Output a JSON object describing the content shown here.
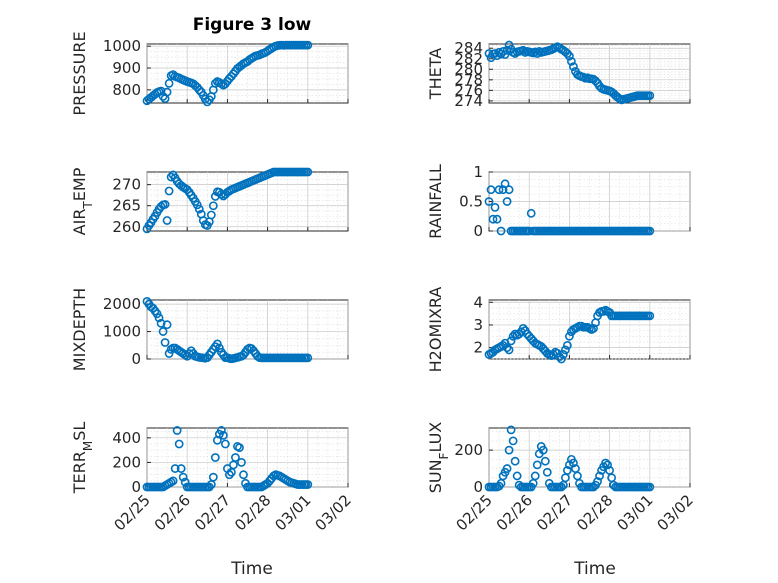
{
  "title": "Figure 3 low",
  "colors": {
    "marker": "#0072BD",
    "axis": "#262626"
  },
  "xticks": [
    "02/25",
    "02/26",
    "02/27",
    "02/28",
    "03/01",
    "03/02"
  ],
  "xlabel": "Time",
  "chart_data": [
    {
      "type": "scatter",
      "ylabel": "PRESSURE",
      "yticks": [
        "800",
        "900",
        "1000"
      ],
      "ylim": [
        740,
        1010
      ],
      "x": [
        0,
        0.05,
        0.1,
        0.15,
        0.2,
        0.25,
        0.3,
        0.35,
        0.4,
        0.45,
        0.5,
        0.55,
        0.6,
        0.65,
        0.7,
        0.75,
        0.8,
        0.85,
        0.9,
        0.95,
        1,
        1.05,
        1.1,
        1.15,
        1.2,
        1.25,
        1.3,
        1.35,
        1.4,
        1.45,
        1.5,
        1.55,
        1.6,
        1.65,
        1.7,
        1.75,
        1.8,
        1.85,
        1.9,
        1.95,
        2,
        2.05,
        2.1,
        2.15,
        2.2,
        2.25,
        2.3,
        2.35,
        2.4,
        2.45,
        2.5,
        2.55,
        2.6,
        2.65,
        2.7,
        2.75,
        2.8,
        2.85,
        2.9,
        2.95,
        3,
        3.05,
        3.1,
        3.15,
        3.2,
        3.25,
        3.3,
        3.35,
        3.4,
        3.45,
        3.5,
        3.55,
        3.6,
        3.65,
        3.7,
        3.75,
        3.8,
        3.85,
        3.9,
        3.95,
        4
      ],
      "y": [
        750,
        758,
        765,
        773,
        780,
        788,
        792,
        795,
        770,
        760,
        790,
        830,
        865,
        870,
        862,
        858,
        855,
        850,
        846,
        842,
        838,
        835,
        832,
        828,
        820,
        812,
        800,
        790,
        775,
        758,
        745,
        755,
        770,
        800,
        830,
        838,
        834,
        828,
        822,
        828,
        840,
        852,
        862,
        874,
        886,
        898,
        905,
        912,
        920,
        925,
        930,
        938,
        944,
        950,
        955,
        958,
        960,
        965,
        968,
        972,
        978,
        985,
        990,
        996,
        1000,
        1003,
        1004,
        1005,
        1004,
        1005,
        1005,
        1005,
        1005,
        1005,
        1005,
        1005,
        1005,
        1005,
        1005,
        1005,
        1005
      ]
    },
    {
      "type": "scatter",
      "ylabel": "THETA",
      "yticks": [
        "274",
        "276",
        "278",
        "280",
        "282",
        "284"
      ],
      "ylim": [
        273.6,
        284.8
      ],
      "x": [
        0,
        0.05,
        0.1,
        0.15,
        0.2,
        0.25,
        0.3,
        0.35,
        0.4,
        0.45,
        0.5,
        0.55,
        0.6,
        0.65,
        0.7,
        0.75,
        0.8,
        0.85,
        0.9,
        0.95,
        1,
        1.05,
        1.1,
        1.15,
        1.2,
        1.25,
        1.3,
        1.35,
        1.4,
        1.45,
        1.5,
        1.55,
        1.6,
        1.65,
        1.7,
        1.75,
        1.8,
        1.85,
        1.9,
        1.95,
        2,
        2.05,
        2.1,
        2.15,
        2.2,
        2.25,
        2.3,
        2.35,
        2.4,
        2.45,
        2.5,
        2.55,
        2.6,
        2.65,
        2.7,
        2.75,
        2.8,
        2.85,
        2.9,
        2.95,
        3,
        3.05,
        3.1,
        3.15,
        3.2,
        3.25,
        3.3,
        3.35,
        3.4,
        3.45,
        3.5,
        3.55,
        3.6,
        3.65,
        3.7,
        3.75,
        3.8,
        3.85,
        3.9,
        3.95,
        4
      ],
      "y": [
        283,
        282.2,
        282.9,
        283,
        282.6,
        283.2,
        282.9,
        283.4,
        282.8,
        283.6,
        284.6,
        283.8,
        283.2,
        283,
        283.3,
        283.4,
        283.5,
        283.6,
        283.2,
        283.4,
        283.3,
        283.2,
        283.1,
        283.3,
        283,
        283.4,
        283.2,
        283.3,
        283.4,
        283.5,
        283.6,
        283.7,
        283.9,
        284.1,
        284.3,
        284.1,
        283.8,
        283.6,
        283.3,
        283,
        282.5,
        281.5,
        280.5,
        279.6,
        279,
        278.8,
        278.6,
        278.5,
        278.3,
        278.4,
        278.2,
        278.2,
        278.1,
        277.8,
        277.4,
        276.8,
        276.4,
        276.2,
        276.1,
        276,
        275.9,
        275.7,
        275.4,
        275,
        274.7,
        274.4,
        274.2,
        274.3,
        274.4,
        274.5,
        274.6,
        274.7,
        274.8,
        274.9,
        275,
        275,
        275,
        275,
        275,
        275,
        275
      ]
    },
    {
      "type": "scatter",
      "ylabel": "AIR_TEMP",
      "yticks": [
        "260",
        "265",
        "270"
      ],
      "ylim": [
        259,
        273
      ],
      "x": [
        0,
        0.05,
        0.1,
        0.15,
        0.2,
        0.25,
        0.3,
        0.35,
        0.4,
        0.45,
        0.5,
        0.55,
        0.6,
        0.65,
        0.7,
        0.75,
        0.8,
        0.85,
        0.9,
        0.95,
        1,
        1.05,
        1.1,
        1.15,
        1.2,
        1.25,
        1.3,
        1.35,
        1.4,
        1.45,
        1.5,
        1.55,
        1.6,
        1.65,
        1.7,
        1.75,
        1.8,
        1.85,
        1.9,
        1.95,
        2,
        2.05,
        2.1,
        2.15,
        2.2,
        2.25,
        2.3,
        2.35,
        2.4,
        2.45,
        2.5,
        2.55,
        2.6,
        2.65,
        2.7,
        2.75,
        2.8,
        2.85,
        2.9,
        2.95,
        3,
        3.05,
        3.1,
        3.15,
        3.2,
        3.25,
        3.3,
        3.35,
        3.4,
        3.45,
        3.5,
        3.55,
        3.6,
        3.65,
        3.7,
        3.75,
        3.8,
        3.85,
        3.9,
        3.95,
        4
      ],
      "y": [
        259.5,
        260.3,
        261,
        261.8,
        262.5,
        263.4,
        264.2,
        264.8,
        265.2,
        265.3,
        261.5,
        268.5,
        271.8,
        272.3,
        271.6,
        270.8,
        270.2,
        269.8,
        269.4,
        269.1,
        268.8,
        268.2,
        267.5,
        266.8,
        266,
        265.2,
        264.2,
        263,
        261.5,
        260.5,
        260.3,
        261.2,
        262.8,
        265,
        267.2,
        268.3,
        268.2,
        267.7,
        267.3,
        267.7,
        268.2,
        268.5,
        268.8,
        269,
        269.2,
        269.4,
        269.6,
        269.8,
        270,
        270.2,
        270.4,
        270.6,
        270.8,
        271,
        271.2,
        271.4,
        271.6,
        271.8,
        272,
        272.2,
        272.4,
        272.6,
        272.8,
        273,
        273.2,
        273.4,
        273.6,
        273.8,
        274,
        274.2,
        274.4,
        274.6,
        274.8,
        275,
        275,
        275,
        275,
        275,
        275,
        275,
        275
      ]
    },
    {
      "type": "scatter",
      "ylabel": "RAINFALL",
      "yticks": [
        "0",
        "0.5",
        "1"
      ],
      "ylim": [
        0,
        1
      ],
      "x": [
        0,
        0.05,
        0.1,
        0.15,
        0.2,
        0.25,
        0.3,
        0.35,
        0.4,
        0.45,
        0.5,
        0.55,
        0.6,
        0.65,
        0.7,
        0.75,
        0.8,
        0.85,
        0.9,
        0.95,
        1,
        1.05,
        1.1,
        1.15,
        1.2,
        1.25,
        1.3,
        1.35,
        1.4,
        1.45,
        1.5,
        1.55,
        1.6,
        1.65,
        1.7,
        1.75,
        1.8,
        1.85,
        1.9,
        1.95,
        2,
        2.05,
        2.1,
        2.15,
        2.2,
        2.25,
        2.3,
        2.35,
        2.4,
        2.45,
        2.5,
        2.55,
        2.6,
        2.65,
        2.7,
        2.75,
        2.8,
        2.85,
        2.9,
        2.95,
        3,
        3.05,
        3.1,
        3.15,
        3.2,
        3.25,
        3.3,
        3.35,
        3.4,
        3.45,
        3.5,
        3.55,
        3.6,
        3.65,
        3.7,
        3.75,
        3.8,
        3.85,
        3.9,
        3.95,
        4
      ],
      "y": [
        0.5,
        0.7,
        0.2,
        0.4,
        0.2,
        0.7,
        0,
        0.7,
        0.8,
        0.5,
        0.7,
        0,
        0,
        0,
        0,
        0,
        0,
        0,
        0,
        0,
        0,
        0.3,
        0,
        0,
        0,
        0,
        0,
        0,
        0,
        0,
        0,
        0,
        0,
        0,
        0,
        0,
        0,
        0,
        0,
        0,
        0,
        0,
        0,
        0,
        0,
        0,
        0,
        0,
        0,
        0,
        0,
        0,
        0,
        0,
        0,
        0,
        0,
        0,
        0,
        0,
        0,
        0,
        0,
        0,
        0,
        0,
        0,
        0,
        0,
        0,
        0,
        0,
        0,
        0,
        0,
        0,
        0,
        0,
        0,
        0,
        0
      ]
    },
    {
      "type": "scatter",
      "ylabel": "MIXDEPTH",
      "yticks": [
        "0",
        "1000",
        "2000"
      ],
      "ylim": [
        0,
        2150
      ],
      "x": [
        0,
        0.05,
        0.1,
        0.15,
        0.2,
        0.25,
        0.3,
        0.35,
        0.4,
        0.45,
        0.5,
        0.55,
        0.6,
        0.65,
        0.7,
        0.75,
        0.8,
        0.85,
        0.9,
        0.95,
        1,
        1.05,
        1.1,
        1.15,
        1.2,
        1.25,
        1.3,
        1.35,
        1.4,
        1.45,
        1.5,
        1.55,
        1.6,
        1.65,
        1.7,
        1.75,
        1.8,
        1.85,
        1.9,
        1.95,
        2,
        2.05,
        2.1,
        2.15,
        2.2,
        2.25,
        2.3,
        2.35,
        2.4,
        2.45,
        2.5,
        2.55,
        2.6,
        2.65,
        2.7,
        2.75,
        2.8,
        2.85,
        2.9,
        2.95,
        3,
        3.05,
        3.1,
        3.15,
        3.2,
        3.25,
        3.3,
        3.35,
        3.4,
        3.45,
        3.5,
        3.55,
        3.6,
        3.65,
        3.7,
        3.75,
        3.8,
        3.85,
        3.9,
        3.95,
        4
      ],
      "y": [
        2100,
        2000,
        1900,
        1850,
        1750,
        1650,
        1500,
        1300,
        1000,
        600,
        1250,
        200,
        350,
        400,
        400,
        350,
        300,
        250,
        200,
        150,
        100,
        200,
        300,
        200,
        100,
        80,
        60,
        50,
        40,
        30,
        50,
        150,
        250,
        350,
        450,
        550,
        400,
        250,
        150,
        50,
        50,
        20,
        10,
        20,
        40,
        60,
        80,
        100,
        150,
        250,
        350,
        400,
        380,
        300,
        200,
        100,
        50,
        40,
        40,
        40,
        40,
        40,
        40,
        40,
        40,
        40,
        40,
        40,
        40,
        40,
        40,
        40,
        40,
        40,
        40,
        40,
        40,
        40,
        40,
        40,
        40
      ]
    },
    {
      "type": "scatter",
      "ylabel": "H2OMIXRA",
      "yticks": [
        "2",
        "3",
        "4"
      ],
      "ylim": [
        1.5,
        4.1
      ],
      "x": [
        0,
        0.05,
        0.1,
        0.15,
        0.2,
        0.25,
        0.3,
        0.35,
        0.4,
        0.45,
        0.5,
        0.55,
        0.6,
        0.65,
        0.7,
        0.75,
        0.8,
        0.85,
        0.9,
        0.95,
        1,
        1.05,
        1.1,
        1.15,
        1.2,
        1.25,
        1.3,
        1.35,
        1.4,
        1.45,
        1.5,
        1.55,
        1.6,
        1.65,
        1.7,
        1.75,
        1.8,
        1.85,
        1.9,
        1.95,
        2,
        2.05,
        2.1,
        2.15,
        2.2,
        2.25,
        2.3,
        2.35,
        2.4,
        2.45,
        2.5,
        2.55,
        2.6,
        2.65,
        2.7,
        2.75,
        2.8,
        2.85,
        2.9,
        2.95,
        3,
        3.05,
        3.1,
        3.15,
        3.2,
        3.25,
        3.3,
        3.35,
        3.4,
        3.45,
        3.5,
        3.55,
        3.6,
        3.65,
        3.7,
        3.75,
        3.8,
        3.85,
        3.9,
        3.95,
        4
      ],
      "y": [
        1.7,
        1.75,
        1.8,
        1.9,
        1.95,
        2.0,
        2.05,
        2.1,
        2.2,
        2.0,
        1.9,
        2.3,
        2.5,
        2.6,
        2.55,
        2.6,
        2.7,
        2.85,
        2.75,
        2.6,
        2.5,
        2.4,
        2.3,
        2.2,
        2.15,
        2.1,
        2.05,
        1.95,
        1.85,
        1.75,
        1.7,
        1.65,
        1.7,
        1.8,
        1.75,
        1.6,
        1.5,
        1.7,
        1.9,
        2.1,
        2.5,
        2.7,
        2.8,
        2.85,
        2.9,
        2.95,
        2.95,
        2.9,
        2.9,
        2.9,
        2.85,
        2.8,
        2.85,
        3.1,
        3.4,
        3.55,
        3.6,
        3.6,
        3.65,
        3.6,
        3.55,
        3.4,
        3.4,
        3.4,
        3.4,
        3.4,
        3.4,
        3.4,
        3.4,
        3.4,
        3.4,
        3.4,
        3.4,
        3.4,
        3.4,
        3.4,
        3.4,
        3.4,
        3.4,
        3.4,
        3.4
      ]
    },
    {
      "type": "scatter",
      "ylabel": "TERR_MSL",
      "yticks": [
        "0",
        "200",
        "400"
      ],
      "ylim": [
        0,
        480
      ],
      "x": [
        0,
        0.05,
        0.1,
        0.15,
        0.2,
        0.25,
        0.3,
        0.35,
        0.4,
        0.45,
        0.5,
        0.55,
        0.6,
        0.65,
        0.7,
        0.75,
        0.8,
        0.85,
        0.9,
        0.95,
        1,
        1.05,
        1.1,
        1.15,
        1.2,
        1.25,
        1.3,
        1.35,
        1.4,
        1.45,
        1.5,
        1.55,
        1.6,
        1.65,
        1.7,
        1.75,
        1.8,
        1.85,
        1.9,
        1.95,
        2,
        2.05,
        2.1,
        2.15,
        2.2,
        2.25,
        2.3,
        2.35,
        2.4,
        2.45,
        2.5,
        2.55,
        2.6,
        2.65,
        2.7,
        2.75,
        2.8,
        2.85,
        2.9,
        2.95,
        3,
        3.05,
        3.1,
        3.15,
        3.2,
        3.25,
        3.3,
        3.35,
        3.4,
        3.45,
        3.5,
        3.55,
        3.6,
        3.65,
        3.7,
        3.75,
        3.8,
        3.85,
        3.9,
        3.95,
        4
      ],
      "y": [
        0,
        0,
        0,
        0,
        0,
        0,
        0,
        0,
        0,
        10,
        20,
        30,
        40,
        50,
        150,
        460,
        350,
        150,
        80,
        40,
        0,
        0,
        0,
        0,
        0,
        0,
        0,
        0,
        0,
        0,
        0,
        0,
        20,
        80,
        240,
        380,
        430,
        460,
        420,
        350,
        150,
        100,
        120,
        180,
        240,
        330,
        320,
        200,
        100,
        30,
        0,
        0,
        0,
        0,
        0,
        0,
        0,
        0,
        10,
        20,
        30,
        50,
        70,
        90,
        100,
        95,
        90,
        80,
        70,
        60,
        50,
        40,
        35,
        30,
        25,
        20,
        20,
        20,
        20,
        20,
        20
      ]
    },
    {
      "type": "scatter",
      "ylabel": "SUN_FLUX",
      "yticks": [
        "0",
        "200"
      ],
      "ylim": [
        0,
        320
      ],
      "x": [
        0,
        0.05,
        0.1,
        0.15,
        0.2,
        0.25,
        0.3,
        0.35,
        0.4,
        0.45,
        0.5,
        0.55,
        0.6,
        0.65,
        0.7,
        0.75,
        0.8,
        0.85,
        0.9,
        0.95,
        1,
        1.05,
        1.1,
        1.15,
        1.2,
        1.25,
        1.3,
        1.35,
        1.4,
        1.45,
        1.5,
        1.55,
        1.6,
        1.65,
        1.7,
        1.75,
        1.8,
        1.85,
        1.9,
        1.95,
        2,
        2.05,
        2.1,
        2.15,
        2.2,
        2.25,
        2.3,
        2.35,
        2.4,
        2.45,
        2.5,
        2.55,
        2.6,
        2.65,
        2.7,
        2.75,
        2.8,
        2.85,
        2.9,
        2.95,
        3,
        3.05,
        3.1,
        3.15,
        3.2,
        3.25,
        3.3,
        3.35,
        3.4,
        3.45,
        3.5,
        3.55,
        3.6,
        3.65,
        3.7,
        3.75,
        3.8,
        3.85,
        3.9,
        3.95,
        4
      ],
      "y": [
        0,
        0,
        0,
        0,
        0,
        5,
        20,
        60,
        80,
        100,
        200,
        310,
        250,
        140,
        60,
        10,
        0,
        0,
        0,
        0,
        0,
        0,
        20,
        60,
        120,
        180,
        220,
        200,
        140,
        80,
        20,
        0,
        0,
        0,
        0,
        0,
        0,
        10,
        50,
        90,
        120,
        150,
        130,
        100,
        60,
        20,
        0,
        0,
        0,
        0,
        0,
        0,
        0,
        10,
        30,
        60,
        90,
        110,
        130,
        120,
        90,
        50,
        10,
        0,
        0,
        0,
        0,
        0,
        0,
        0,
        0,
        0,
        0,
        0,
        0,
        0,
        0,
        0,
        0,
        0,
        0
      ]
    }
  ]
}
